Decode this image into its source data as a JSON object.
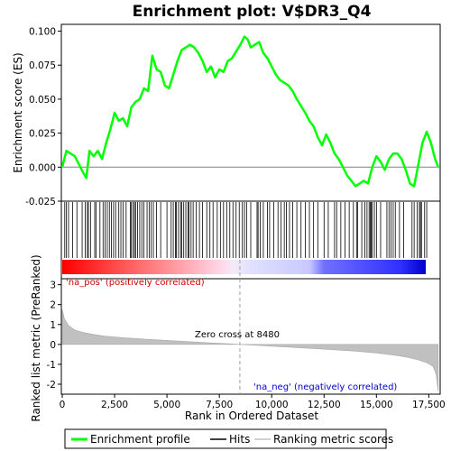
{
  "chart_data": {
    "type": "line",
    "title": "Enrichment plot: V$DR3_Q4",
    "xlabel": "Rank in Ordered Dataset",
    "top_panel": {
      "ylabel": "Enrichment score (ES)",
      "ylim": [
        -0.025,
        0.105
      ],
      "yticks": [
        "0.100",
        "0.075",
        "0.050",
        "0.025",
        "0.000",
        "-0.025"
      ],
      "ytick_values": [
        0.1,
        0.075,
        0.05,
        0.025,
        0.0,
        -0.025
      ],
      "series": [
        {
          "name": "Enrichment profile",
          "color": "#00ff00",
          "x": [
            0,
            200,
            400,
            600,
            800,
            1000,
            1150,
            1300,
            1500,
            1700,
            1900,
            2100,
            2300,
            2500,
            2700,
            2900,
            3100,
            3300,
            3500,
            3700,
            3900,
            4100,
            4300,
            4500,
            4700,
            4900,
            5100,
            5300,
            5500,
            5700,
            5900,
            6100,
            6300,
            6500,
            6700,
            6900,
            7100,
            7300,
            7500,
            7700,
            7900,
            8100,
            8300,
            8500,
            8700,
            8850,
            9000,
            9200,
            9400,
            9600,
            9800,
            10000,
            10200,
            10400,
            10600,
            10800,
            11000,
            11200,
            11400,
            11600,
            11800,
            12000,
            12200,
            12400,
            12600,
            12800,
            13000,
            13200,
            13400,
            13600,
            13800,
            14000,
            14200,
            14400,
            14600,
            14800,
            15000,
            15200,
            15400,
            15600,
            15800,
            16000,
            16200,
            16400,
            16600,
            16800,
            17000,
            17200,
            17400,
            17600,
            17800,
            17950
          ],
          "y": [
            0.0,
            0.012,
            0.01,
            0.008,
            0.002,
            -0.004,
            -0.008,
            0.012,
            0.008,
            0.012,
            0.006,
            0.018,
            0.028,
            0.04,
            0.034,
            0.036,
            0.03,
            0.044,
            0.048,
            0.05,
            0.058,
            0.056,
            0.082,
            0.072,
            0.07,
            0.06,
            0.058,
            0.068,
            0.078,
            0.086,
            0.088,
            0.09,
            0.088,
            0.084,
            0.078,
            0.07,
            0.074,
            0.066,
            0.072,
            0.07,
            0.078,
            0.08,
            0.085,
            0.09,
            0.096,
            0.094,
            0.088,
            0.09,
            0.092,
            0.084,
            0.08,
            0.074,
            0.068,
            0.064,
            0.062,
            0.06,
            0.056,
            0.05,
            0.045,
            0.04,
            0.034,
            0.03,
            0.022,
            0.016,
            0.024,
            0.018,
            0.01,
            0.006,
            0.0,
            -0.006,
            -0.01,
            -0.014,
            -0.012,
            -0.01,
            -0.012,
            0.0,
            0.008,
            0.004,
            -0.002,
            0.006,
            0.01,
            0.01,
            0.006,
            -0.002,
            -0.012,
            -0.014,
            0.002,
            0.018,
            0.026,
            0.018,
            0.006,
            0.0
          ]
        }
      ]
    },
    "hits": {
      "name": "Hits",
      "color": "#000000",
      "positions": [
        120,
        200,
        300,
        500,
        700,
        950,
        1100,
        1200,
        1250,
        1350,
        1550,
        1620,
        1800,
        1950,
        2050,
        2150,
        2250,
        2350,
        2450,
        2550,
        2700,
        2800,
        2900,
        3050,
        3250,
        3300,
        3380,
        3450,
        3500,
        3600,
        3700,
        3800,
        3900,
        4050,
        4150,
        4250,
        4350,
        4500,
        4700,
        5000,
        5200,
        5300,
        5400,
        5450,
        5550,
        5650,
        5700,
        5800,
        5900,
        6000,
        6050,
        6150,
        6250,
        6400,
        6550,
        6700,
        6900,
        7050,
        7200,
        7400,
        7550,
        7700,
        7850,
        8000,
        8150,
        8300,
        8450,
        8600,
        8700,
        8800,
        9000,
        9300,
        9350,
        9450,
        9600,
        9800,
        9900,
        10100,
        10300,
        10450,
        10600,
        10700,
        10850,
        11000,
        11200,
        11400,
        11600,
        11800,
        12000,
        12200,
        12500,
        12700,
        13000,
        13100,
        13300,
        13500,
        13700,
        13900,
        14050,
        14100,
        14300,
        14450,
        14550,
        14650,
        14700,
        14750,
        14800,
        14900,
        15000,
        15200,
        15500,
        15600,
        15700,
        15800,
        15900,
        16100,
        16300,
        16700,
        16800,
        16950,
        17050,
        17100,
        17150,
        17300,
        17400
      ]
    },
    "ranked_metric": {
      "name": "Ranking metric scores",
      "ylabel": "Ranked list metric (PreRanked)",
      "color": "#c0c0c0",
      "ylim": [
        -2.5,
        3.3
      ],
      "yticks": [
        "3",
        "2",
        "1",
        "0",
        "-1",
        "-2"
      ],
      "ytick_values": [
        3,
        2,
        1,
        0,
        -1,
        -2
      ],
      "x": [
        0,
        100,
        300,
        600,
        1000,
        1500,
        2000,
        3000,
        4000,
        5000,
        6000,
        7000,
        8000,
        8480,
        9000,
        10000,
        11000,
        12000,
        13000,
        14000,
        15000,
        16000,
        16500,
        17000,
        17400,
        17700,
        17850,
        17950
      ],
      "y": [
        1.75,
        1.3,
        0.95,
        0.72,
        0.6,
        0.5,
        0.42,
        0.33,
        0.26,
        0.2,
        0.14,
        0.08,
        0.03,
        0.0,
        -0.03,
        -0.09,
        -0.15,
        -0.21,
        -0.27,
        -0.34,
        -0.43,
        -0.56,
        -0.65,
        -0.78,
        -0.92,
        -1.1,
        -1.5,
        -2.35
      ]
    },
    "xlim": [
      0,
      18000
    ],
    "xticks": [
      "0",
      "2,500",
      "5,000",
      "7,500",
      "10,000",
      "12,500",
      "15,000",
      "17,500"
    ],
    "xtick_values": [
      0,
      2500,
      5000,
      7500,
      10000,
      12500,
      15000,
      17500
    ],
    "zero_cross": 8480,
    "annotations": {
      "pos_label": "'na_pos' (positively correlated)",
      "neg_label": "'na_neg' (negatively correlated)",
      "zero_cross_label": "Zero cross at 8480",
      "pos_color": "#cc0000",
      "neg_color": "#0000cc"
    },
    "legend": {
      "placement": "bottom",
      "items": [
        "Enrichment profile",
        "Hits",
        "Ranking metric scores"
      ]
    }
  }
}
